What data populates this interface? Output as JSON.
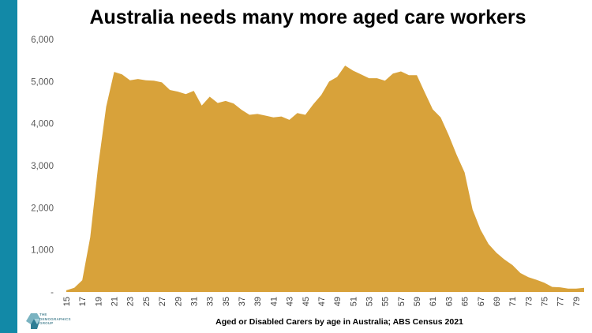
{
  "title": "Australia needs many more aged care workers",
  "footer_caption": "Aged or Disabled Carers by age in Australia; ABS Census 2021",
  "logo": {
    "lines": [
      "THE",
      "DEMOGRAPHICS",
      "GROUP"
    ]
  },
  "colors": {
    "accent_bar": "#1289a7",
    "area_fill": "#d8a23a"
  },
  "chart_data": {
    "type": "area",
    "title": "Australia needs many more aged care workers",
    "xlabel": "",
    "ylabel": "",
    "ylim": [
      0,
      6000
    ],
    "yticks": [
      0,
      1000,
      2000,
      3000,
      4000,
      5000,
      6000
    ],
    "ytick_labels": [
      "-",
      "1,000",
      "2,000",
      "3,000",
      "4,000",
      "5,000",
      "6,000"
    ],
    "xtick_labels": [
      "15",
      "17",
      "19",
      "21",
      "23",
      "25",
      "27",
      "29",
      "31",
      "33",
      "35",
      "37",
      "39",
      "41",
      "43",
      "45",
      "47",
      "49",
      "51",
      "53",
      "55",
      "57",
      "59",
      "61",
      "63",
      "65",
      "67",
      "69",
      "71",
      "73",
      "75",
      "77",
      "79"
    ],
    "grid": false,
    "legend": "none",
    "x": [
      15,
      16,
      17,
      18,
      19,
      20,
      21,
      22,
      23,
      24,
      25,
      26,
      27,
      28,
      29,
      30,
      31,
      32,
      33,
      34,
      35,
      36,
      37,
      38,
      39,
      40,
      41,
      42,
      43,
      44,
      45,
      46,
      47,
      48,
      49,
      50,
      51,
      52,
      53,
      54,
      55,
      56,
      57,
      58,
      59,
      60,
      61,
      62,
      63,
      64,
      65,
      66,
      67,
      68,
      69,
      70,
      71,
      72,
      73,
      74,
      75,
      76,
      77,
      78,
      79,
      80
    ],
    "values": [
      40,
      100,
      280,
      1300,
      3000,
      4400,
      5230,
      5170,
      5030,
      5060,
      5030,
      5020,
      4980,
      4800,
      4760,
      4700,
      4780,
      4430,
      4640,
      4490,
      4540,
      4480,
      4330,
      4210,
      4230,
      4190,
      4150,
      4170,
      4090,
      4250,
      4210,
      4460,
      4680,
      5000,
      5110,
      5380,
      5260,
      5170,
      5080,
      5080,
      5020,
      5190,
      5240,
      5150,
      5150,
      4740,
      4340,
      4150,
      3730,
      3260,
      2840,
      1960,
      1480,
      1140,
      930,
      770,
      640,
      450,
      350,
      290,
      220,
      120,
      110,
      80,
      80,
      100
    ]
  }
}
